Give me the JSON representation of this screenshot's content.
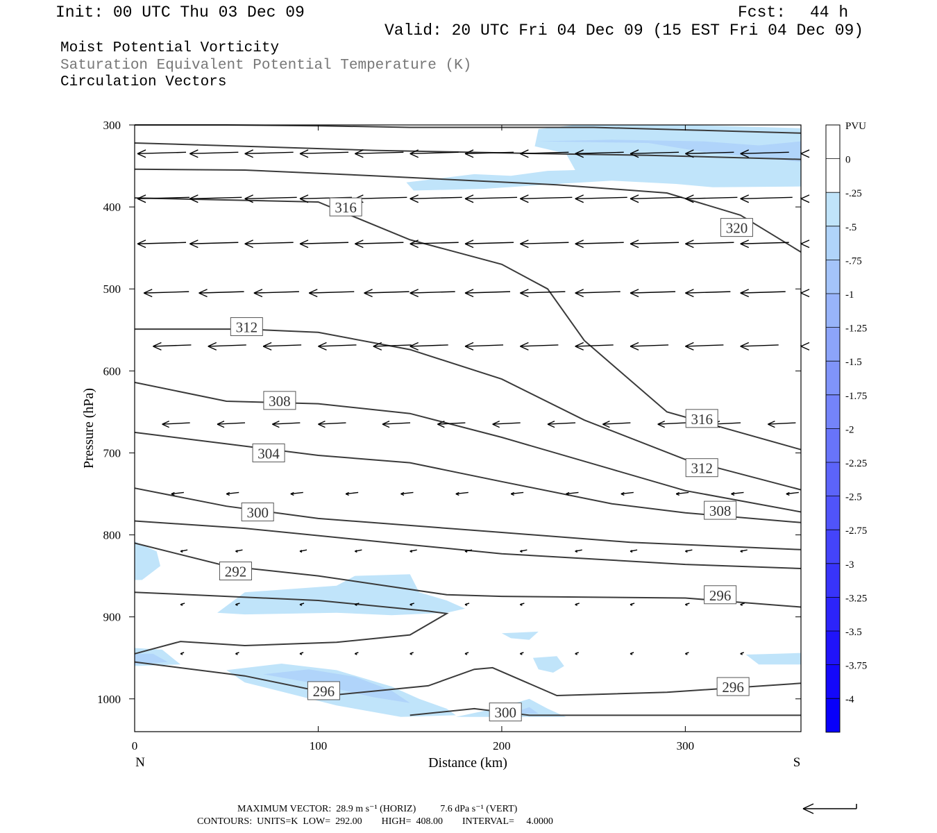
{
  "header": {
    "init": "Init: 00 UTC Thu 03 Dec 09",
    "fcst_label": "Fcst:",
    "fcst_value": "44 h",
    "valid": "Valid: 20 UTC Fri 04 Dec 09 (15 EST Fri 04 Dec 09)"
  },
  "fields": {
    "field1": "Moist Potential Vorticity",
    "field2": "Saturation Equivalent Potential Temperature (K)",
    "field3": "Circulation Vectors"
  },
  "footer": {
    "line1": "MAXIMUM VECTOR:  28.9 m s⁻¹ (HORIZ)          7.6 dPa s⁻¹ (VERT)",
    "line2": "CONTOURS:  UNITS=K  LOW=  292.00        HIGH=  408.00        INTERVAL=     4.0000"
  },
  "colors": {
    "contour": "#3a3a3a",
    "pv_shades": [
      "#ffffff",
      "#ffffff",
      "#c0e4fa",
      "#b0d4fa",
      "#a4c4fa",
      "#98b4fa",
      "#8ca4fa",
      "#8094fa",
      "#7484fa",
      "#6874fa",
      "#5c64fa",
      "#5054fa",
      "#4444fa",
      "#3834fa",
      "#2c24fa",
      "#2014fa",
      "#1408fa",
      "#0800fa"
    ]
  },
  "chart_data": {
    "type": "contour",
    "xlabel": "Distance (km)",
    "ylabel": "Pressure (hPa)",
    "xlim": [
      0,
      363
    ],
    "ylim": [
      1040,
      300
    ],
    "x_ticks": [
      "0",
      "100",
      "200",
      "300"
    ],
    "y_ticks": [
      "300",
      "400",
      "500",
      "600",
      "700",
      "800",
      "900",
      "1000"
    ],
    "left_end_label": "N",
    "right_end_label": "S",
    "colorbar": {
      "title": "PVU",
      "labels": [
        "0",
        "-.25",
        "-.5",
        "-.75",
        "-1",
        "-1.25",
        "-1.5",
        "-1.75",
        "-2",
        "-2.25",
        "-2.5",
        "-2.75",
        "-3",
        "-3.25",
        "-3.5",
        "-3.75",
        "-4"
      ]
    },
    "contour_labels": [
      {
        "text": "316",
        "x": 115,
        "p": 400
      },
      {
        "text": "320",
        "x": 328,
        "p": 425
      },
      {
        "text": "312",
        "x": 61,
        "p": 546
      },
      {
        "text": "308",
        "x": 79,
        "p": 636
      },
      {
        "text": "316",
        "x": 309,
        "p": 658
      },
      {
        "text": "304",
        "x": 73,
        "p": 700
      },
      {
        "text": "312",
        "x": 309,
        "p": 718
      },
      {
        "text": "300",
        "x": 67,
        "p": 772
      },
      {
        "text": "308",
        "x": 319,
        "p": 770
      },
      {
        "text": "292",
        "x": 55,
        "p": 844
      },
      {
        "text": "296",
        "x": 319,
        "p": 873
      },
      {
        "text": "296",
        "x": 103,
        "p": 990
      },
      {
        "text": "296",
        "x": 326,
        "p": 985
      },
      {
        "text": "300",
        "x": 202,
        "p": 1016
      }
    ],
    "theta_e_contours": [
      [
        [
          0,
          300
        ],
        [
          50,
          300
        ],
        [
          100,
          301
        ],
        [
          150,
          303
        ],
        [
          200,
          303
        ],
        [
          250,
          303
        ],
        [
          300,
          306
        ],
        [
          363,
          310
        ]
      ],
      [
        [
          0,
          322
        ],
        [
          60,
          326
        ],
        [
          130,
          331
        ],
        [
          220,
          335
        ],
        [
          280,
          337
        ],
        [
          363,
          342
        ]
      ],
      [
        [
          0,
          354
        ],
        [
          60,
          355
        ],
        [
          130,
          362
        ],
        [
          230,
          373
        ],
        [
          290,
          383
        ],
        [
          330,
          410
        ],
        [
          363,
          455
        ]
      ],
      [
        [
          0,
          389
        ],
        [
          100,
          394
        ],
        [
          150,
          440
        ],
        [
          200,
          470
        ],
        [
          225,
          500
        ],
        [
          245,
          563
        ],
        [
          290,
          650
        ],
        [
          363,
          696
        ]
      ],
      [
        [
          0,
          549
        ],
        [
          60,
          549
        ],
        [
          100,
          553
        ],
        [
          150,
          574
        ],
        [
          200,
          610
        ],
        [
          245,
          660
        ],
        [
          300,
          708
        ],
        [
          363,
          745
        ]
      ],
      [
        [
          0,
          614
        ],
        [
          50,
          637
        ],
        [
          100,
          640
        ],
        [
          150,
          652
        ],
        [
          200,
          681
        ],
        [
          260,
          720
        ],
        [
          300,
          746
        ],
        [
          363,
          772
        ]
      ],
      [
        [
          0,
          675
        ],
        [
          50,
          689
        ],
        [
          100,
          703
        ],
        [
          150,
          712
        ],
        [
          200,
          735
        ],
        [
          260,
          762
        ],
        [
          300,
          773
        ],
        [
          363,
          785
        ]
      ],
      [
        [
          0,
          743
        ],
        [
          50,
          765
        ],
        [
          100,
          780
        ],
        [
          200,
          797
        ],
        [
          270,
          809
        ],
        [
          363,
          818
        ]
      ],
      [
        [
          0,
          783
        ],
        [
          60,
          792
        ],
        [
          150,
          812
        ],
        [
          200,
          823
        ],
        [
          300,
          836
        ],
        [
          363,
          841
        ]
      ],
      [
        [
          0,
          810
        ],
        [
          50,
          838
        ],
        [
          100,
          850
        ],
        [
          170,
          873
        ],
        [
          200,
          875
        ],
        [
          300,
          877
        ],
        [
          363,
          888
        ]
      ],
      [
        [
          0,
          945
        ],
        [
          25,
          930
        ],
        [
          60,
          935
        ],
        [
          110,
          931
        ],
        [
          150,
          922
        ],
        [
          170,
          896
        ],
        [
          160,
          893
        ],
        [
          100,
          880
        ],
        [
          0,
          870
        ]
      ],
      [
        [
          0,
          955
        ],
        [
          60,
          972
        ],
        [
          110,
          995
        ],
        [
          160,
          984
        ],
        [
          185,
          964
        ],
        [
          195,
          962
        ],
        [
          230,
          996
        ],
        [
          290,
          992
        ],
        [
          363,
          981
        ]
      ],
      [
        [
          150,
          1020
        ],
        [
          185,
          1012
        ],
        [
          215,
          1020
        ],
        [
          363,
          1020
        ]
      ]
    ],
    "pv_shading": [
      {
        "level": "-.25",
        "polygon": [
          [
            148,
            370
          ],
          [
            185,
            360
          ],
          [
            205,
            362
          ],
          [
            225,
            356
          ],
          [
            240,
            355
          ],
          [
            235,
            335
          ],
          [
            218,
            326
          ],
          [
            220,
            305
          ],
          [
            240,
            300
          ],
          [
            300,
            300
          ],
          [
            363,
            304
          ],
          [
            363,
            375
          ],
          [
            315,
            376
          ],
          [
            295,
            372
          ],
          [
            260,
            368
          ],
          [
            230,
            372
          ],
          [
            190,
            378
          ],
          [
            152,
            380
          ]
        ]
      },
      {
        "level": "-.5",
        "polygon": [
          [
            220,
            320
          ],
          [
            280,
            322
          ],
          [
            310,
            333
          ],
          [
            363,
            345
          ],
          [
            363,
            320
          ],
          [
            340,
            325
          ],
          [
            310,
            320
          ],
          [
            260,
            318
          ]
        ]
      },
      {
        "level": "-.25",
        "polygon": [
          [
            0,
            808
          ],
          [
            12,
            820
          ],
          [
            14,
            838
          ],
          [
            4,
            855
          ],
          [
            0,
            855
          ]
        ]
      },
      {
        "level": "-.25",
        "polygon": [
          [
            45,
            895
          ],
          [
            60,
            870
          ],
          [
            110,
            862
          ],
          [
            120,
            850
          ],
          [
            150,
            848
          ],
          [
            155,
            870
          ],
          [
            170,
            880
          ],
          [
            175,
            885
          ],
          [
            180,
            890
          ],
          [
            170,
            895
          ],
          [
            140,
            898
          ],
          [
            110,
            895
          ],
          [
            60,
            897
          ]
        ]
      },
      {
        "level": "-.25",
        "polygon": [
          [
            200,
            920
          ],
          [
            220,
            918
          ],
          [
            215,
            928
          ],
          [
            205,
            926
          ]
        ]
      },
      {
        "level": "-.25",
        "polygon": [
          [
            217,
            950
          ],
          [
            230,
            948
          ],
          [
            234,
            960
          ],
          [
            228,
            968
          ],
          [
            220,
            964
          ]
        ]
      },
      {
        "level": "-.25",
        "polygon": [
          [
            333,
            946
          ],
          [
            350,
            945
          ],
          [
            363,
            944
          ],
          [
            363,
            958
          ],
          [
            340,
            958
          ]
        ]
      },
      {
        "level": "-.25",
        "polygon": [
          [
            0,
            938
          ],
          [
            15,
            940
          ],
          [
            25,
            958
          ],
          [
            0,
            960
          ]
        ]
      },
      {
        "level": "-.5",
        "polygon": [
          [
            0,
            945
          ],
          [
            10,
            945
          ],
          [
            18,
            955
          ],
          [
            0,
            958
          ]
        ]
      },
      {
        "level": "-.25",
        "polygon": [
          [
            50,
            965
          ],
          [
            80,
            957
          ],
          [
            110,
            965
          ],
          [
            140,
            985
          ],
          [
            155,
            1000
          ],
          [
            170,
            1012
          ],
          [
            175,
            1020
          ],
          [
            145,
            1022
          ],
          [
            110,
            1008
          ],
          [
            60,
            980
          ]
        ]
      },
      {
        "level": "-.5",
        "polygon": [
          [
            70,
            970
          ],
          [
            95,
            964
          ],
          [
            120,
            973
          ],
          [
            140,
            990
          ],
          [
            150,
            1005
          ],
          [
            130,
            998
          ],
          [
            95,
            980
          ]
        ]
      },
      {
        "level": "-.25",
        "polygon": [
          [
            175,
            1022
          ],
          [
            200,
            1010
          ],
          [
            215,
            1000
          ],
          [
            225,
            1012
          ],
          [
            235,
            1022
          ]
        ]
      },
      {
        "level": "-.5",
        "polygon": [
          [
            205,
            1018
          ],
          [
            215,
            1010
          ],
          [
            220,
            1018
          ]
        ]
      }
    ],
    "arrows_note": "Circulation vectors drawn on a regular grid, mostly pointing toward N (left)."
  }
}
